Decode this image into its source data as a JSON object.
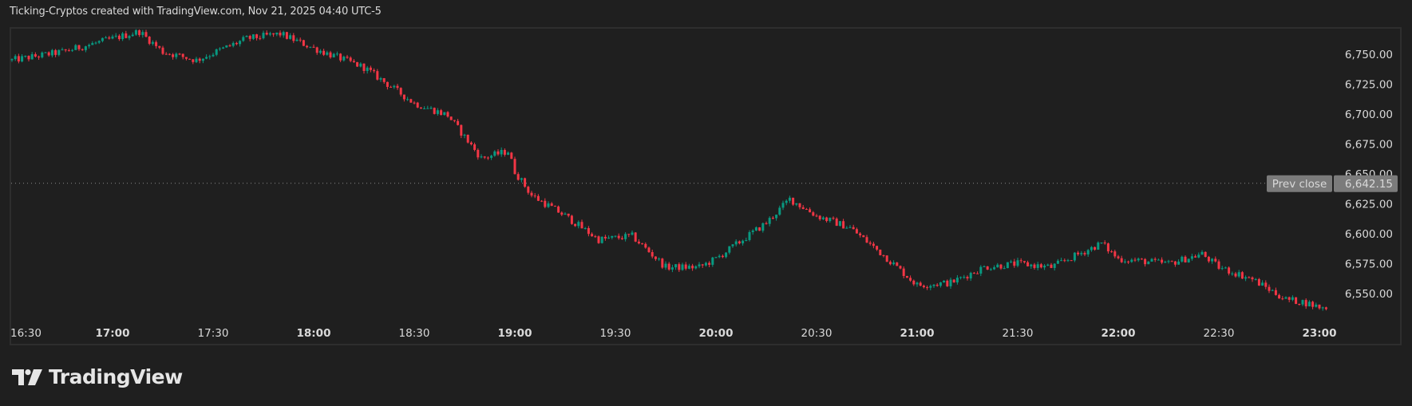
{
  "header": {
    "title": "Ticking-Cryptos created with TradingView.com, Nov 21, 2025 04:40 UTC-5"
  },
  "branding": {
    "logo_text": "TradingView"
  },
  "colors": {
    "background": "#1f1f1f",
    "up": "#089981",
    "down": "#f23645",
    "grid_border": "#2e2e2e",
    "label_text": "#d9d9d9",
    "prev_close_bg": "#7b7b7b"
  },
  "prev_close": {
    "label": "Prev close",
    "value": "6,642.15"
  },
  "chart_data": {
    "type": "candlestick",
    "title": "Ticking-Cryptos created with TradingView.com, Nov 21, 2025 04:40 UTC-5",
    "xlabel": "",
    "ylabel": "",
    "interval": "1m",
    "ylim": [
      6530,
      6775
    ],
    "y_ticks": [
      "6,750.00",
      "6,725.00",
      "6,700.00",
      "6,675.00",
      "6,650.00",
      "6,625.00",
      "6,600.00",
      "6,575.00",
      "6,550.00"
    ],
    "x_ticks": [
      {
        "label": "16:30",
        "bold": false
      },
      {
        "label": "17:00",
        "bold": true
      },
      {
        "label": "17:30",
        "bold": false
      },
      {
        "label": "18:00",
        "bold": true
      },
      {
        "label": "18:30",
        "bold": false
      },
      {
        "label": "19:00",
        "bold": true
      },
      {
        "label": "19:30",
        "bold": false
      },
      {
        "label": "20:00",
        "bold": true
      },
      {
        "label": "20:30",
        "bold": false
      },
      {
        "label": "21:00",
        "bold": true
      },
      {
        "label": "21:30",
        "bold": false
      },
      {
        "label": "22:00",
        "bold": true
      },
      {
        "label": "22:30",
        "bold": false
      },
      {
        "label": "23:00",
        "bold": true
      }
    ],
    "prev_close": 6642.15,
    "last_price": 6537,
    "grid": false,
    "close_path": [
      {
        "t": "16:30",
        "close": 6745
      },
      {
        "t": "16:45",
        "close": 6752
      },
      {
        "t": "17:00",
        "close": 6763
      },
      {
        "t": "17:08",
        "close": 6769
      },
      {
        "t": "17:15",
        "close": 6752
      },
      {
        "t": "17:25",
        "close": 6745
      },
      {
        "t": "17:40",
        "close": 6763
      },
      {
        "t": "17:50",
        "close": 6767
      },
      {
        "t": "18:00",
        "close": 6755
      },
      {
        "t": "18:15",
        "close": 6739
      },
      {
        "t": "18:30",
        "close": 6709
      },
      {
        "t": "18:40",
        "close": 6699
      },
      {
        "t": "18:50",
        "close": 6663
      },
      {
        "t": "18:58",
        "close": 6669
      },
      {
        "t": "19:00",
        "close": 6652
      },
      {
        "t": "19:05",
        "close": 6632
      },
      {
        "t": "19:15",
        "close": 6615
      },
      {
        "t": "19:25",
        "close": 6595
      },
      {
        "t": "19:35",
        "close": 6598
      },
      {
        "t": "19:45",
        "close": 6572
      },
      {
        "t": "19:55",
        "close": 6572
      },
      {
        "t": "20:00",
        "close": 6579
      },
      {
        "t": "20:15",
        "close": 6609
      },
      {
        "t": "20:22",
        "close": 6629
      },
      {
        "t": "20:30",
        "close": 6615
      },
      {
        "t": "20:40",
        "close": 6605
      },
      {
        "t": "20:50",
        "close": 6582
      },
      {
        "t": "21:00",
        "close": 6557
      },
      {
        "t": "21:10",
        "close": 6559
      },
      {
        "t": "21:20",
        "close": 6572
      },
      {
        "t": "21:30",
        "close": 6575
      },
      {
        "t": "21:40",
        "close": 6572
      },
      {
        "t": "21:55",
        "close": 6592
      },
      {
        "t": "22:00",
        "close": 6579
      },
      {
        "t": "22:15",
        "close": 6575
      },
      {
        "t": "22:25",
        "close": 6583
      },
      {
        "t": "22:30",
        "close": 6572
      },
      {
        "t": "22:40",
        "close": 6562
      },
      {
        "t": "22:50",
        "close": 6545
      },
      {
        "t": "22:55",
        "close": 6543
      },
      {
        "t": "23:02",
        "close": 6537
      }
    ]
  }
}
